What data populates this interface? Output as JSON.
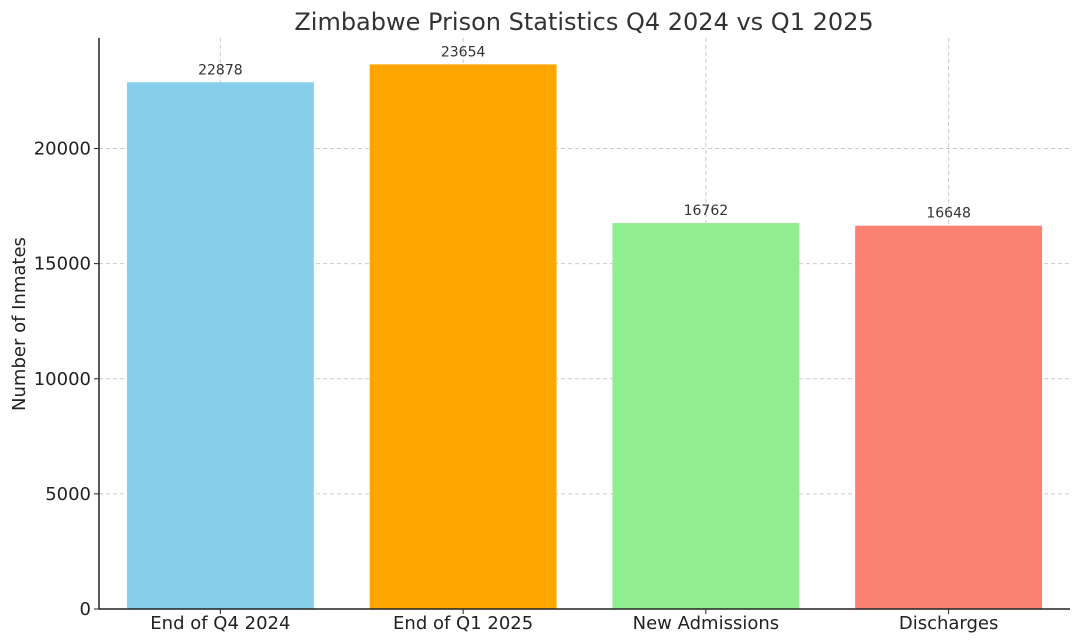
{
  "chart_data": {
    "type": "bar",
    "title": "Zimbabwe Prison Statistics Q4 2024 vs Q1 2025",
    "xlabel": "",
    "ylabel": "Number of Inmates",
    "categories": [
      "End of Q4 2024",
      "End of Q1 2025",
      "New Admissions",
      "Discharges"
    ],
    "values": [
      22878,
      23654,
      16762,
      16648
    ],
    "colors": [
      "#87ceeb",
      "#ffa500",
      "#90ee90",
      "#fa8072"
    ],
    "ylim": [
      0,
      24800
    ],
    "yticks": [
      0,
      5000,
      10000,
      15000,
      20000
    ],
    "grid": true,
    "legend": "none"
  }
}
